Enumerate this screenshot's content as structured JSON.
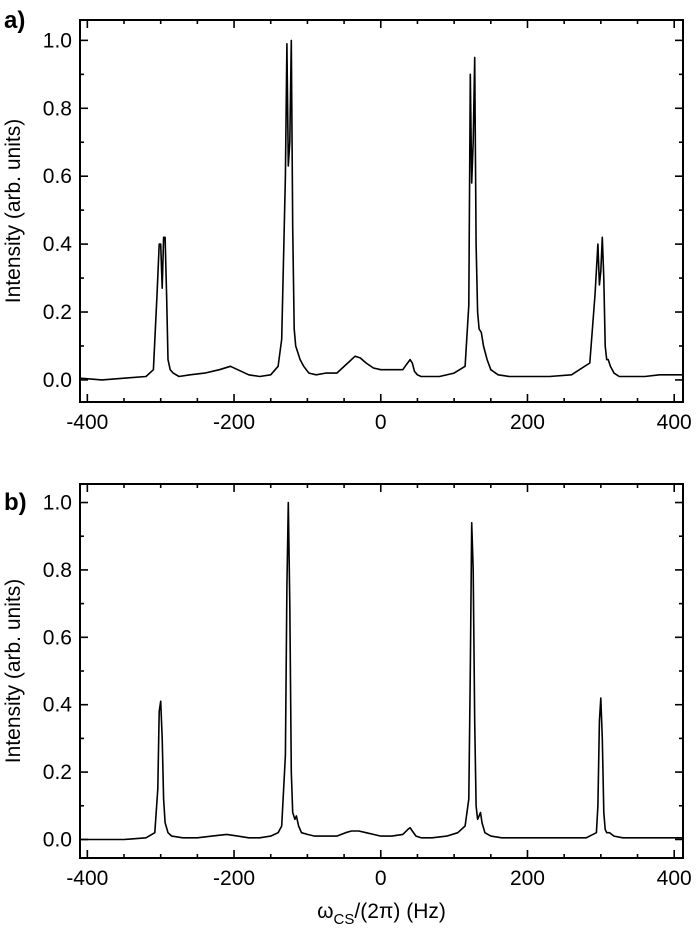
{
  "chart_data": [
    {
      "type": "line",
      "panel_label": "a)",
      "xlabel": "",
      "ylabel": "Intensity (arb. units)",
      "xlim": [
        -410,
        412
      ],
      "ylim": [
        -0.065,
        1.06
      ],
      "x_ticks": [
        -400,
        -200,
        0,
        200,
        400
      ],
      "x_tick_labels": [
        "-400",
        "-200",
        "0",
        "200",
        "400"
      ],
      "y_ticks": [
        0.0,
        0.2,
        0.4,
        0.6,
        0.8,
        1.0
      ],
      "y_tick_labels": [
        "0.0",
        "0.2",
        "0.4",
        "0.6",
        "0.8",
        "1.0"
      ],
      "grid": false,
      "series": [
        {
          "x": [
            -410,
            -380,
            -350,
            -320,
            -310,
            -305,
            -302,
            -300,
            -298,
            -296,
            -294,
            -292,
            -290,
            -287,
            -283,
            -275,
            -260,
            -240,
            -220,
            -205,
            -195,
            -180,
            -165,
            -150,
            -140,
            -135,
            -130,
            -128,
            -126,
            -124,
            -122,
            -120,
            -118,
            -116,
            -113,
            -110,
            -105,
            -98,
            -88,
            -75,
            -60,
            -45,
            -35,
            -28,
            -20,
            -10,
            0,
            10,
            20,
            30,
            35,
            40,
            43,
            46,
            50,
            55,
            65,
            80,
            100,
            115,
            120,
            122,
            124,
            126,
            128,
            130,
            132,
            134,
            137,
            140,
            145,
            150,
            160,
            175,
            200,
            230,
            260,
            285,
            292,
            296,
            298,
            300,
            302,
            304,
            306,
            308,
            310,
            313,
            318,
            325,
            340,
            360,
            380,
            412
          ],
          "y": [
            0.005,
            0.0,
            0.005,
            0.01,
            0.03,
            0.25,
            0.4,
            0.4,
            0.27,
            0.42,
            0.42,
            0.25,
            0.06,
            0.03,
            0.02,
            0.01,
            0.015,
            0.02,
            0.03,
            0.04,
            0.03,
            0.015,
            0.01,
            0.015,
            0.04,
            0.12,
            0.6,
            0.99,
            0.63,
            0.7,
            1.0,
            0.45,
            0.15,
            0.1,
            0.08,
            0.06,
            0.04,
            0.02,
            0.015,
            0.02,
            0.02,
            0.05,
            0.07,
            0.065,
            0.05,
            0.035,
            0.03,
            0.03,
            0.03,
            0.03,
            0.045,
            0.06,
            0.05,
            0.025,
            0.015,
            0.01,
            0.01,
            0.01,
            0.02,
            0.04,
            0.22,
            0.9,
            0.58,
            0.7,
            0.95,
            0.4,
            0.2,
            0.15,
            0.14,
            0.1,
            0.06,
            0.03,
            0.015,
            0.01,
            0.01,
            0.01,
            0.015,
            0.05,
            0.25,
            0.4,
            0.28,
            0.32,
            0.42,
            0.3,
            0.1,
            0.06,
            0.06,
            0.04,
            0.02,
            0.01,
            0.01,
            0.01,
            0.015,
            0.015
          ]
        }
      ]
    },
    {
      "type": "line",
      "panel_label": "b)",
      "xlabel": "ω_CS/(2π) (Hz)",
      "xlabel_parts": {
        "omega": "ω",
        "sub": "CS",
        "rest": "/(2π) (Hz)"
      },
      "ylabel": "Intensity (arb. units)",
      "xlim": [
        -410,
        412
      ],
      "ylim": [
        -0.055,
        1.055
      ],
      "x_ticks": [
        -400,
        -200,
        0,
        200,
        400
      ],
      "x_tick_labels": [
        "-400",
        "-200",
        "0",
        "200",
        "400"
      ],
      "y_ticks": [
        0.0,
        0.2,
        0.4,
        0.6,
        0.8,
        1.0
      ],
      "y_tick_labels": [
        "0.0",
        "0.2",
        "0.4",
        "0.6",
        "0.8",
        "1.0"
      ],
      "grid": false,
      "series": [
        {
          "x": [
            -410,
            -380,
            -350,
            -320,
            -308,
            -304,
            -302,
            -300,
            -298,
            -296,
            -294,
            -290,
            -285,
            -270,
            -250,
            -230,
            -210,
            -195,
            -180,
            -165,
            -150,
            -140,
            -135,
            -130,
            -128,
            -126,
            -124,
            -122,
            -120,
            -117,
            -115,
            -112,
            -108,
            -100,
            -90,
            -75,
            -60,
            -48,
            -40,
            -30,
            -20,
            -10,
            0,
            15,
            30,
            37,
            40,
            43,
            48,
            55,
            70,
            90,
            105,
            115,
            120,
            122,
            124,
            126,
            128,
            130,
            132,
            134,
            136,
            138,
            142,
            150,
            165,
            190,
            220,
            250,
            280,
            294,
            296,
            298,
            300,
            302,
            304,
            306,
            308,
            312,
            318,
            330,
            360,
            390,
            412
          ],
          "y": [
            0.0,
            0.0,
            0.0,
            0.005,
            0.02,
            0.15,
            0.38,
            0.41,
            0.3,
            0.12,
            0.05,
            0.02,
            0.01,
            0.005,
            0.005,
            0.01,
            0.015,
            0.01,
            0.005,
            0.005,
            0.01,
            0.02,
            0.04,
            0.25,
            0.75,
            1.0,
            0.7,
            0.2,
            0.08,
            0.06,
            0.07,
            0.04,
            0.02,
            0.015,
            0.01,
            0.01,
            0.01,
            0.02,
            0.025,
            0.025,
            0.02,
            0.015,
            0.01,
            0.01,
            0.015,
            0.03,
            0.035,
            0.025,
            0.01,
            0.005,
            0.005,
            0.01,
            0.02,
            0.04,
            0.12,
            0.5,
            0.94,
            0.8,
            0.35,
            0.1,
            0.06,
            0.07,
            0.08,
            0.05,
            0.02,
            0.01,
            0.005,
            0.005,
            0.005,
            0.005,
            0.005,
            0.02,
            0.1,
            0.35,
            0.42,
            0.3,
            0.08,
            0.03,
            0.02,
            0.02,
            0.01,
            0.005,
            0.005,
            0.005,
            0.005
          ]
        }
      ]
    }
  ]
}
